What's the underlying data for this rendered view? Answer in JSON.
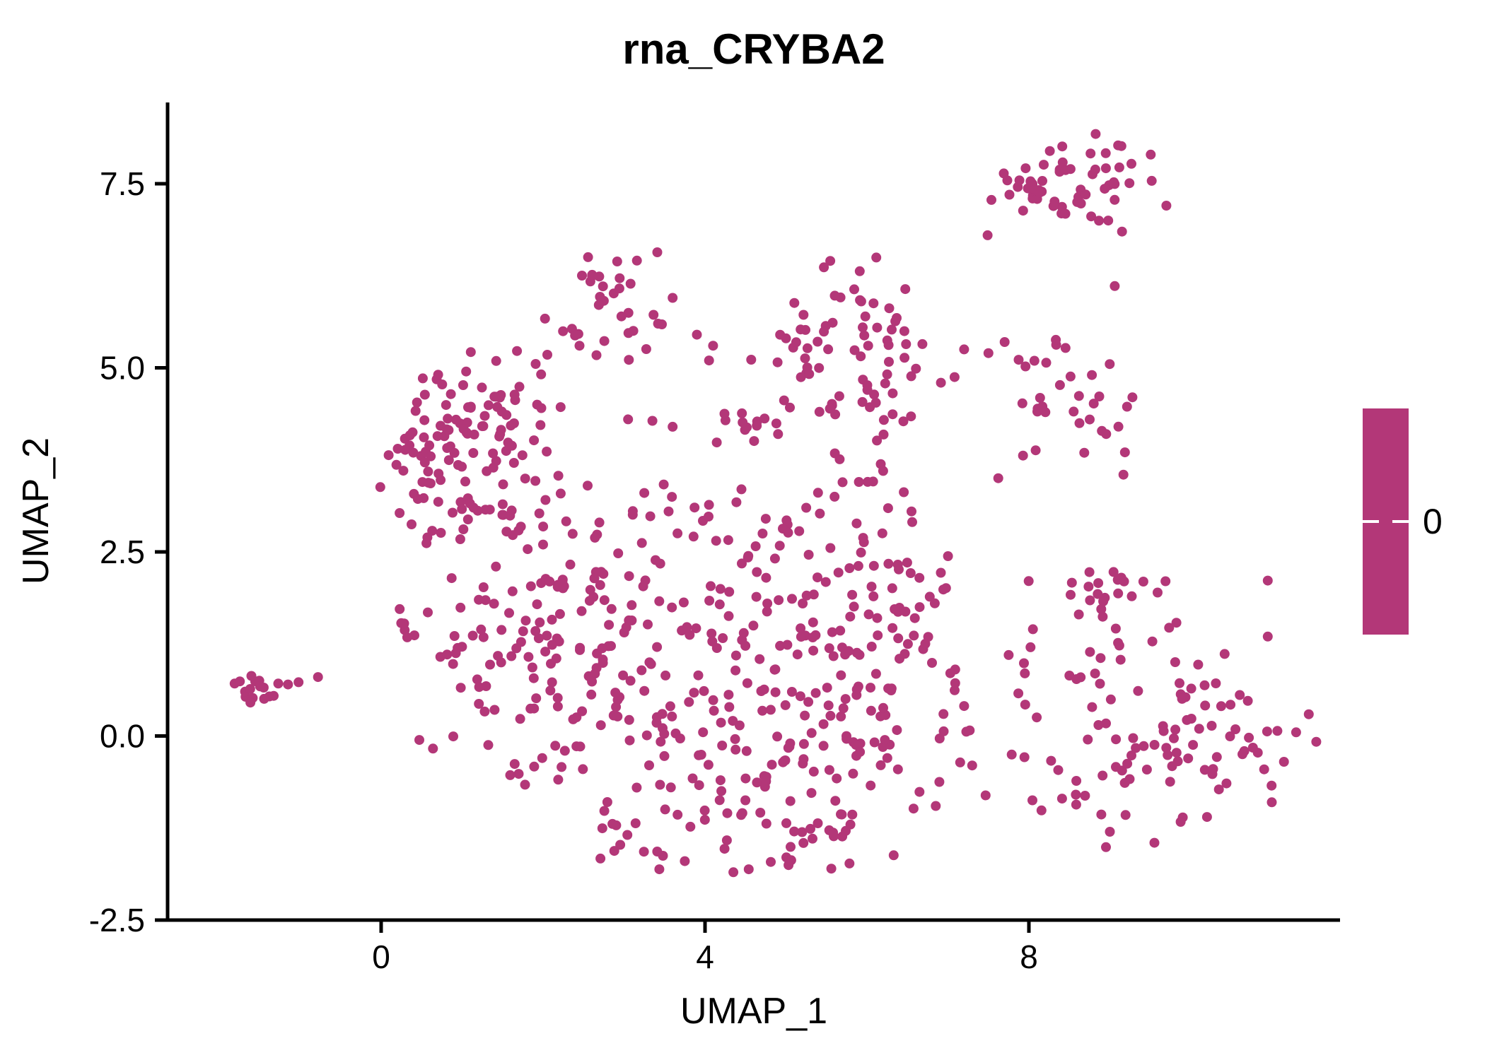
{
  "chart_data": {
    "type": "scatter",
    "title": "rna_CRYBA2",
    "xlabel": "UMAP_1",
    "ylabel": "UMAP_2",
    "xlim": [
      -2.64,
      11.84
    ],
    "ylim": [
      -2.5,
      8.6
    ],
    "x_ticks": {
      "values": [
        0,
        4,
        8
      ],
      "labels": [
        "0",
        "4",
        "8"
      ]
    },
    "y_ticks": {
      "values": [
        -2.5,
        0.0,
        2.5,
        5.0,
        7.5
      ],
      "labels": [
        "-2.5",
        "0.0",
        "2.5",
        "5.0",
        "7.5"
      ]
    },
    "grid": "off",
    "point_color": "#B33778",
    "point_radius_px": 7,
    "n_points_estimate": 1030,
    "seed": 42,
    "clusters": [
      {
        "name": "top-right-dense",
        "cx": 8.55,
        "cy": 7.6,
        "sx": 0.55,
        "sy": 0.28,
        "n": 48
      },
      {
        "name": "top-right-left-edge",
        "cx": 8.2,
        "cy": 7.35,
        "sx": 0.3,
        "sy": 0.2,
        "n": 10
      },
      {
        "name": "top-mid-six-shape",
        "cx": 2.75,
        "cy": 5.8,
        "sx": 0.33,
        "sy": 0.42,
        "n": 32
      },
      {
        "name": "center-right-upper",
        "cx": 5.85,
        "cy": 5.5,
        "sx": 0.55,
        "sy": 0.5,
        "n": 50
      },
      {
        "name": "center-right-upper-low",
        "cx": 6.3,
        "cy": 4.7,
        "sx": 0.4,
        "sy": 0.4,
        "n": 18
      },
      {
        "name": "center-upper-small",
        "cx": 5.35,
        "cy": 4.75,
        "sx": 0.35,
        "sy": 0.3,
        "n": 10
      },
      {
        "name": "right-mid",
        "cx": 8.5,
        "cy": 4.4,
        "sx": 0.4,
        "sy": 0.5,
        "n": 34
      },
      {
        "name": "left-core",
        "cx": 0.85,
        "cy": 4.15,
        "sx": 0.4,
        "sy": 0.45,
        "n": 60
      },
      {
        "name": "left-lower",
        "cx": 1.35,
        "cy": 3.5,
        "sx": 0.45,
        "sy": 0.5,
        "n": 36
      },
      {
        "name": "left-bottom-edge",
        "cx": 0.6,
        "cy": 3.1,
        "sx": 0.3,
        "sy": 0.35,
        "n": 13
      },
      {
        "name": "left-top-fringe",
        "cx": 1.5,
        "cy": 4.55,
        "sx": 0.45,
        "sy": 0.3,
        "n": 18
      },
      {
        "name": "mid-row-clump",
        "cx": 4.45,
        "cy": 4.2,
        "sx": 0.28,
        "sy": 0.15,
        "n": 12
      },
      {
        "name": "central-1",
        "cx": 1.35,
        "cy": 1.3,
        "sx": 0.45,
        "sy": 0.45,
        "n": 26
      },
      {
        "name": "central-2",
        "cx": 2.2,
        "cy": 1.7,
        "sx": 0.5,
        "sy": 0.55,
        "n": 24
      },
      {
        "name": "central-3",
        "cx": 3.1,
        "cy": 1.2,
        "sx": 0.55,
        "sy": 0.6,
        "n": 30
      },
      {
        "name": "central-4",
        "cx": 2.6,
        "cy": 0.3,
        "sx": 0.5,
        "sy": 0.55,
        "n": 27
      },
      {
        "name": "central-5",
        "cx": 3.6,
        "cy": 0.1,
        "sx": 0.55,
        "sy": 0.6,
        "n": 30
      },
      {
        "name": "central-6",
        "cx": 4.6,
        "cy": 0.6,
        "sx": 0.55,
        "sy": 0.65,
        "n": 33
      },
      {
        "name": "central-7",
        "cx": 5.4,
        "cy": 0.15,
        "sx": 0.5,
        "sy": 0.6,
        "n": 30
      },
      {
        "name": "central-8",
        "cx": 4.5,
        "cy": -0.9,
        "sx": 0.55,
        "sy": 0.45,
        "n": 24
      },
      {
        "name": "central-bottom-dense",
        "cx": 5.3,
        "cy": -1.25,
        "sx": 0.5,
        "sy": 0.35,
        "n": 26
      },
      {
        "name": "central-10",
        "cx": 6.2,
        "cy": -0.4,
        "sx": 0.45,
        "sy": 0.55,
        "n": 24
      },
      {
        "name": "central-11",
        "cx": 6.3,
        "cy": 0.9,
        "sx": 0.45,
        "sy": 0.55,
        "n": 24
      },
      {
        "name": "right-shoulder",
        "cx": 6.45,
        "cy": 2.0,
        "sx": 0.45,
        "sy": 0.45,
        "n": 22
      },
      {
        "name": "central-13",
        "cx": 5.8,
        "cy": 1.6,
        "sx": 0.5,
        "sy": 0.5,
        "n": 21
      },
      {
        "name": "central-14",
        "cx": 4.3,
        "cy": 1.9,
        "sx": 0.55,
        "sy": 0.5,
        "n": 24
      },
      {
        "name": "bottom-tail-left",
        "cx": 3.3,
        "cy": -1.35,
        "sx": 0.5,
        "sy": 0.3,
        "n": 14
      },
      {
        "name": "bottom-left-edge",
        "cx": 2.2,
        "cy": -0.55,
        "sx": 0.45,
        "sy": 0.3,
        "n": 11
      },
      {
        "name": "left-edge-lower",
        "cx": 1.15,
        "cy": 0.35,
        "sx": 0.35,
        "sy": 0.45,
        "n": 13
      },
      {
        "name": "left-edge-upper",
        "cx": 0.75,
        "cy": 1.6,
        "sx": 0.35,
        "sy": 0.5,
        "n": 13
      },
      {
        "name": "right-fringe",
        "cx": 6.95,
        "cy": 0.3,
        "sx": 0.3,
        "sy": 0.6,
        "n": 11
      },
      {
        "name": "upper-central",
        "cx": 2.75,
        "cy": 2.45,
        "sx": 0.5,
        "sy": 0.4,
        "n": 17
      },
      {
        "name": "upper-central-2",
        "cx": 4.2,
        "cy": 2.8,
        "sx": 0.5,
        "sy": 0.4,
        "n": 14
      },
      {
        "name": "upper-central-3",
        "cx": 5.15,
        "cy": 2.55,
        "sx": 0.45,
        "sy": 0.4,
        "n": 13
      },
      {
        "name": "chain-mid",
        "cx": 6.0,
        "cy": 3.3,
        "sx": 0.4,
        "sy": 0.35,
        "n": 11
      },
      {
        "name": "left-tail",
        "cx": 1.9,
        "cy": 2.9,
        "sx": 0.4,
        "sy": 0.35,
        "n": 11
      },
      {
        "name": "bottom-right-core",
        "cx": 9.3,
        "cy": 0.5,
        "sx": 0.75,
        "sy": 0.8,
        "n": 75
      },
      {
        "name": "bottom-right-top-arm",
        "cx": 9.1,
        "cy": 2.05,
        "sx": 0.3,
        "sy": 0.18,
        "n": 14
      },
      {
        "name": "bottom-right-right",
        "cx": 10.4,
        "cy": 0.0,
        "sx": 0.5,
        "sy": 0.55,
        "n": 28
      },
      {
        "name": "bottom-right-low-left",
        "cx": 8.55,
        "cy": -0.7,
        "sx": 0.3,
        "sy": 0.4,
        "n": 11
      },
      {
        "name": "far-left-blob",
        "cx": -1.6,
        "cy": 0.65,
        "sx": 0.17,
        "sy": 0.12,
        "n": 16
      }
    ],
    "extra_points": [
      [
        7.69,
        7.64
      ],
      [
        7.49,
        6.8
      ],
      [
        9.06,
        6.11
      ],
      [
        8.98,
        7.0
      ],
      [
        9.15,
        6.85
      ],
      [
        7.2,
        5.25
      ],
      [
        7.5,
        5.2
      ],
      [
        7.7,
        5.35
      ],
      [
        -1.15,
        0.7
      ],
      [
        -1.02,
        0.73
      ],
      [
        -0.78,
        0.8
      ],
      [
        3.42,
        5.6
      ],
      [
        3.6,
        5.95
      ],
      [
        3.9,
        5.45
      ],
      [
        4.1,
        5.3
      ],
      [
        4.05,
        5.1
      ],
      [
        4.57,
        5.11
      ],
      [
        3.05,
        4.3
      ],
      [
        3.35,
        4.28
      ],
      [
        3.6,
        4.2
      ],
      [
        2.55,
        3.4
      ],
      [
        2.0,
        2.6
      ],
      [
        5.25,
        3.1
      ],
      [
        5.6,
        3.25
      ],
      [
        5.9,
        3.45
      ],
      [
        6.2,
        3.6
      ],
      [
        6.55,
        3.05
      ],
      [
        4.45,
        3.35
      ],
      [
        4.75,
        2.95
      ],
      [
        3.25,
        3.3
      ],
      [
        3.55,
        3.05
      ],
      [
        7.75,
        1.1
      ],
      [
        7.95,
        0.85
      ],
      [
        8.05,
        1.45
      ],
      [
        11.3,
        0.05
      ],
      [
        11.15,
        -0.35
      ],
      [
        10.95,
        1.35
      ],
      [
        11.0,
        -0.9
      ],
      [
        7.3,
        -0.4
      ],
      [
        6.85,
        -0.95
      ],
      [
        9.0,
        -1.3
      ],
      [
        9.55,
        -1.45
      ],
      [
        10.2,
        -1.1
      ],
      [
        2.45,
        5.3
      ],
      [
        1.05,
        4.95
      ],
      [
        5.0,
        5.4
      ],
      [
        4.35,
        -1.85
      ],
      [
        3.75,
        -1.7
      ]
    ]
  },
  "legend": {
    "label": "0",
    "bar_color": "#B33778",
    "tick_color": "#ffffff"
  },
  "colors": {
    "accent": "#B33778",
    "axis": "#000000",
    "background": "#ffffff"
  }
}
